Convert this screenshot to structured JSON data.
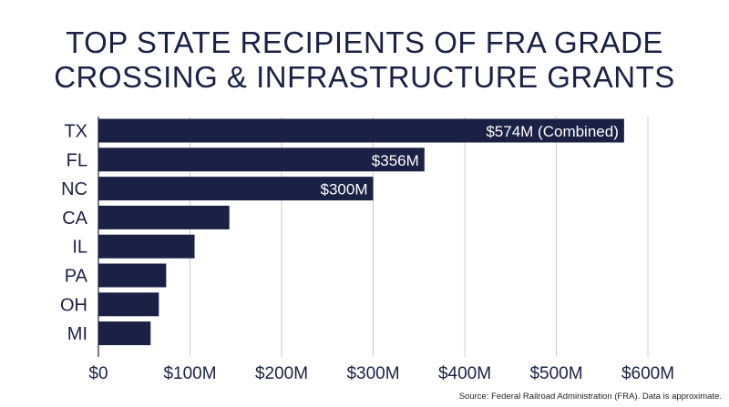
{
  "title_lines": [
    "TOP STATE RECIPIENTS OF FRA GRADE",
    "CROSSING & INFRASTRUCTURE GRANTS"
  ],
  "source": "Source: Federal Railroad Administration (FRA). Data is approximate.",
  "colors": {
    "bar": "#1b2145",
    "text": "#1b2145",
    "grid": "#cccccc",
    "label_text": "#ffffff"
  },
  "chart_data": {
    "type": "bar",
    "orientation": "horizontal",
    "title": "TOP STATE RECIPIENTS OF FRA GRADE CROSSING & INFRASTRUCTURE GRANTS",
    "categories": [
      "TX",
      "FL",
      "NC",
      "CA",
      "IL",
      "PA",
      "OH",
      "MI"
    ],
    "values": [
      574,
      356,
      300,
      143,
      105,
      74,
      66,
      57
    ],
    "data_labels": [
      "$574M (Combined)",
      "$356M",
      "$300M",
      "",
      "",
      "",
      "",
      ""
    ],
    "xticks": [
      0,
      100,
      200,
      300,
      400,
      500,
      600
    ],
    "xtick_labels": [
      "$0",
      "$100M",
      "$200M",
      "$300M",
      "$400M",
      "$500M",
      "$600M"
    ],
    "xlim": [
      0,
      600
    ],
    "grid": "vertical",
    "legend": "none"
  }
}
